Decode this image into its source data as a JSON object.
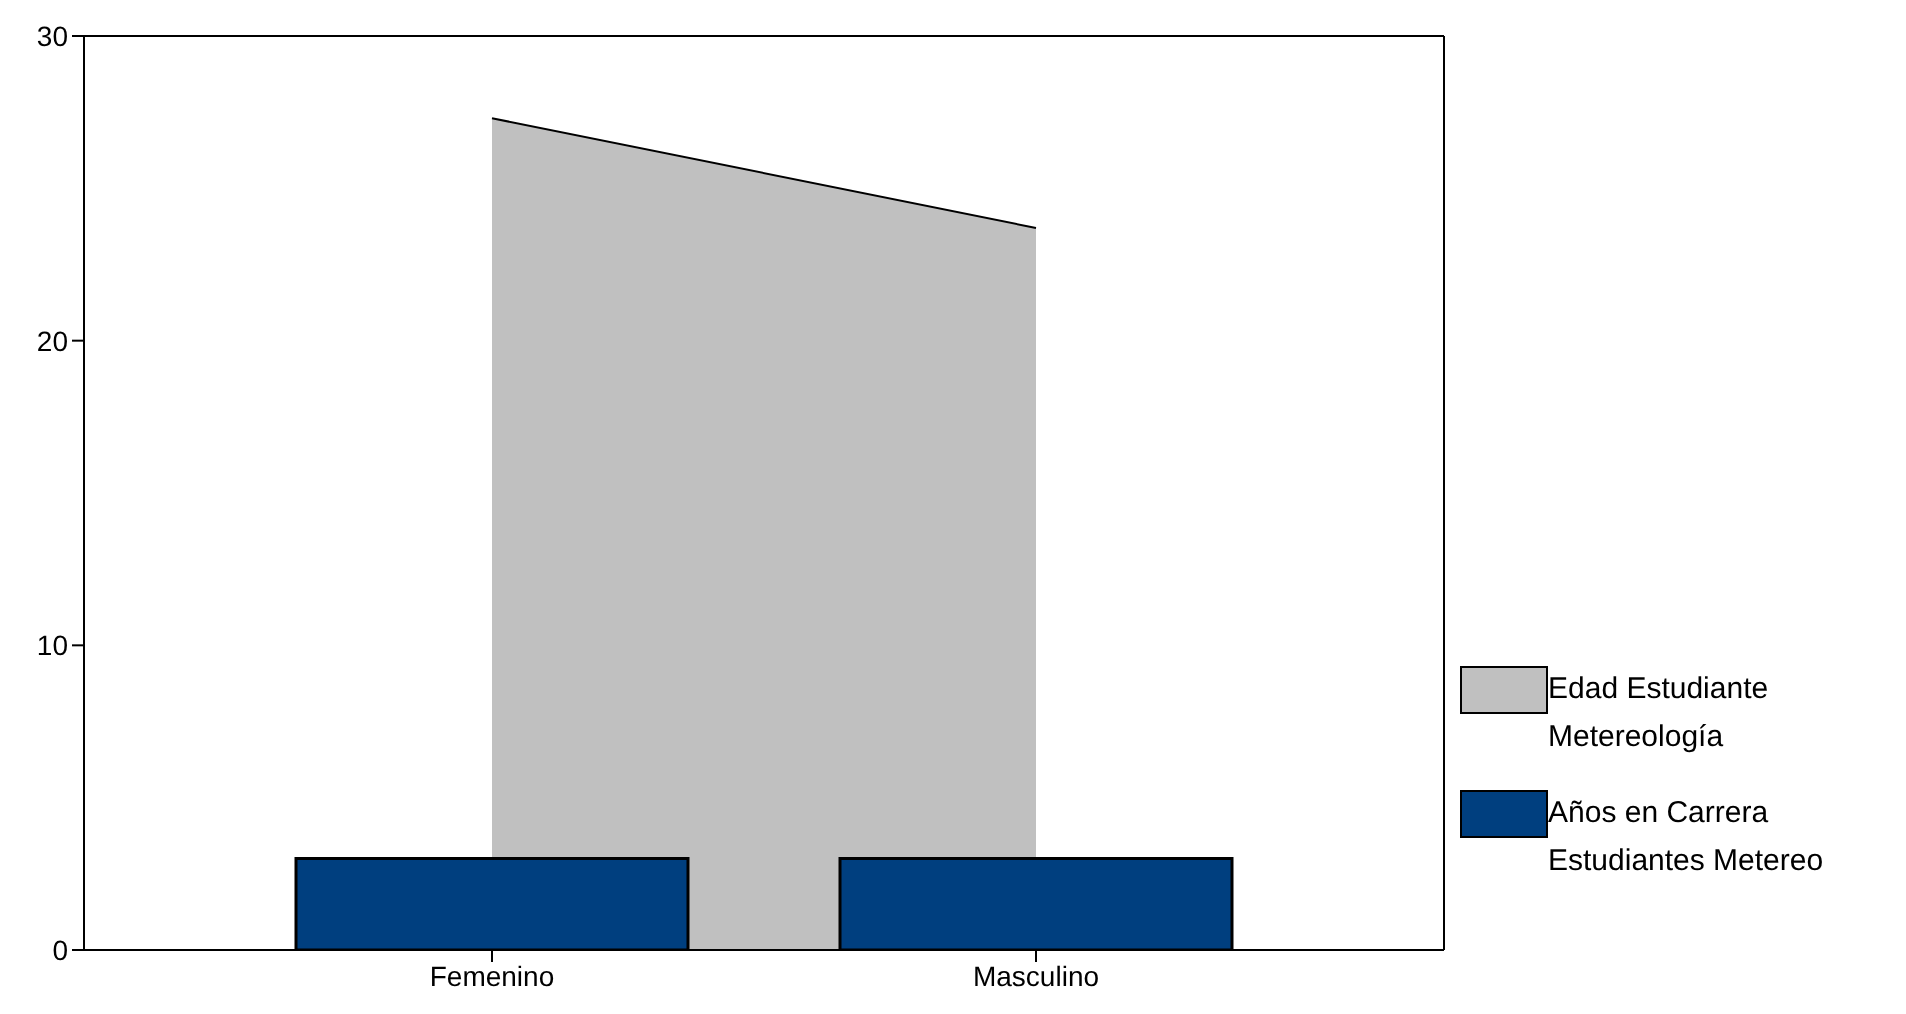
{
  "chart_data": {
    "type": "bar",
    "categories": [
      "Femenino",
      "Masculino"
    ],
    "series": [
      {
        "name": "Edad Estudiante Metereología",
        "type": "area",
        "color": "#c0c0c0",
        "values": [
          27.3,
          23.7
        ]
      },
      {
        "name": "Años en Carrera Estudiantes Metereo",
        "color": "#003f7f",
        "values": [
          3,
          3
        ]
      }
    ],
    "ylim": [
      0,
      30
    ],
    "yticks": [
      0,
      10,
      20,
      30
    ],
    "grid": false,
    "legend": "right",
    "marker": "none"
  }
}
